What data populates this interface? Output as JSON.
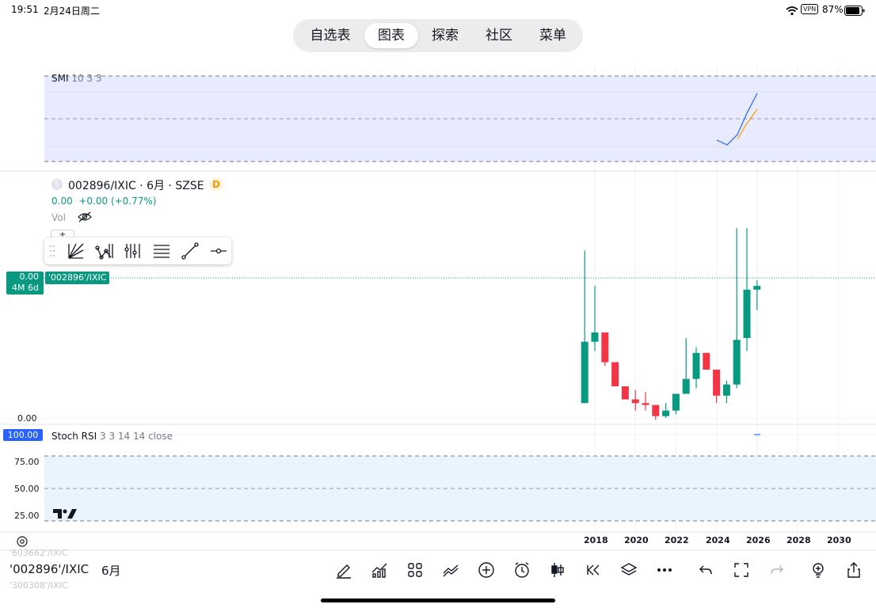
{
  "status_bar": {
    "time": "19:51",
    "date": "2月24日周二",
    "vpn": "VPN",
    "battery": "87%"
  },
  "nav": {
    "tabs": [
      "自选表",
      "图表",
      "探索",
      "社区",
      "菜单"
    ],
    "active": 1
  },
  "smi": {
    "label": "SMI",
    "params": "10 3 3"
  },
  "main": {
    "symbol": "002896/IXIC · 6月 · SZSE",
    "symbol_badge": "D",
    "symbol_icon": "S",
    "price_line": "0.00",
    "change": "+0.00 (+0.77%)",
    "vol": "Vol",
    "price_tag": "0.00",
    "price_tag_sub": "4M 6d",
    "series_tag": "'002896'/IXIC",
    "axis_zero": "0.00",
    "plus": "+"
  },
  "stoch": {
    "label": "Stoch RSI",
    "params": "3 3 14 14 close",
    "top_tag": "100.00",
    "levels": [
      "75.00",
      "50.00",
      "25.00"
    ]
  },
  "chart_data": {
    "type": "candlestick",
    "x_ticks": [
      "2018",
      "2020",
      "2022",
      "2024",
      "2026",
      "2028",
      "2030"
    ],
    "candles": [
      {
        "year": 2017.5,
        "open": 0.0,
        "close": 0.33,
        "high": 0.82,
        "low": 0.0,
        "dir": "up"
      },
      {
        "year": 2018.0,
        "open": 0.33,
        "close": 0.38,
        "high": 0.63,
        "low": 0.28,
        "dir": "up"
      },
      {
        "year": 2018.5,
        "open": 0.38,
        "close": 0.22,
        "high": 0.38,
        "low": 0.2,
        "dir": "down"
      },
      {
        "year": 2019.0,
        "open": 0.22,
        "close": 0.09,
        "high": 0.22,
        "low": 0.09,
        "dir": "down"
      },
      {
        "year": 2019.5,
        "open": 0.09,
        "close": 0.02,
        "high": 0.09,
        "low": 0.02,
        "dir": "down"
      },
      {
        "year": 2020.0,
        "open": 0.02,
        "close": 0.0,
        "high": 0.07,
        "low": -0.04,
        "dir": "down"
      },
      {
        "year": 2020.5,
        "open": 0.0,
        "close": -0.01,
        "high": 0.06,
        "low": -0.04,
        "dir": "down"
      },
      {
        "year": 2021.0,
        "open": -0.01,
        "close": -0.07,
        "high": -0.01,
        "low": -0.09,
        "dir": "down"
      },
      {
        "year": 2021.5,
        "open": -0.07,
        "close": -0.04,
        "high": 0.0,
        "low": -0.08,
        "dir": "up"
      },
      {
        "year": 2022.0,
        "open": -0.04,
        "close": 0.05,
        "high": 0.05,
        "low": -0.06,
        "dir": "up"
      },
      {
        "year": 2022.5,
        "open": 0.05,
        "close": 0.13,
        "high": 0.35,
        "low": 0.05,
        "dir": "up"
      },
      {
        "year": 2023.0,
        "open": 0.13,
        "close": 0.27,
        "high": 0.3,
        "low": 0.08,
        "dir": "up"
      },
      {
        "year": 2023.5,
        "open": 0.27,
        "close": 0.18,
        "high": 0.27,
        "low": 0.18,
        "dir": "down"
      },
      {
        "year": 2024.0,
        "open": 0.18,
        "close": 0.04,
        "high": 0.18,
        "low": 0.0,
        "dir": "down"
      },
      {
        "year": 2024.5,
        "open": 0.04,
        "close": 0.1,
        "high": 0.12,
        "low": 0.0,
        "dir": "up"
      },
      {
        "year": 2025.0,
        "open": 0.1,
        "close": 0.34,
        "high": 0.94,
        "low": 0.08,
        "dir": "up"
      },
      {
        "year": 2025.5,
        "open": 0.35,
        "close": 0.61,
        "high": 0.94,
        "low": 0.28,
        "dir": "up"
      },
      {
        "year": 2026.0,
        "open": 0.61,
        "close": 0.63,
        "high": 0.66,
        "low": 0.5,
        "dir": "up"
      }
    ]
  },
  "bottom": {
    "symbol": "'002896'/IXIC",
    "interval": "6月",
    "prev_symbol": "'603662'/IXIC",
    "next_symbol": "'300308'/IXIC"
  },
  "colors": {
    "up": "#089981",
    "down": "#f23645",
    "smi_bg": "#e8ebfd",
    "stoch_bg": "#e9f4fc"
  }
}
